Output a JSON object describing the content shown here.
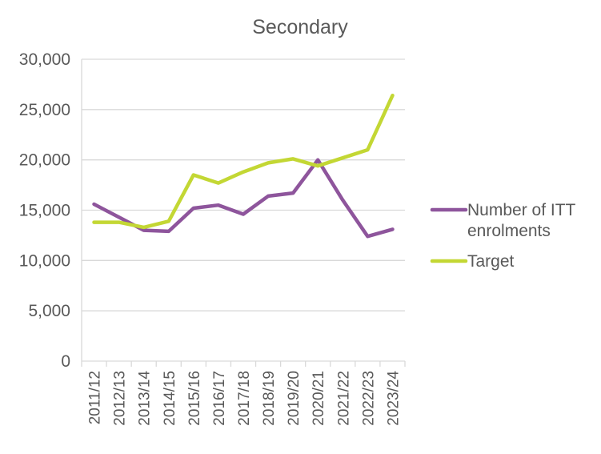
{
  "chart_data": {
    "type": "line",
    "title": "Secondary",
    "xlabel": "",
    "ylabel": "",
    "categories": [
      "2011/12",
      "2012/13",
      "2013/14",
      "2014/15",
      "2015/16",
      "2016/17",
      "2017/18",
      "2018/19",
      "2019/20",
      "2020/21",
      "2021/22",
      "2022/23",
      "2023/24"
    ],
    "ylim": [
      0,
      30000
    ],
    "yticks": [
      "0",
      "5,000",
      "10,000",
      "15,000",
      "20,000",
      "25,000",
      "30,000"
    ],
    "grid": true,
    "legend_position": "right",
    "series": [
      {
        "name": "Number of ITT enrolments",
        "name_lines": [
          "Number of ITT",
          "enrolments"
        ],
        "color": "#8E559C",
        "values": [
          15600,
          14300,
          13000,
          12900,
          15200,
          15500,
          14600,
          16400,
          16700,
          20000,
          16000,
          12400,
          13100
        ]
      },
      {
        "name": "Target",
        "name_lines": [
          "Target"
        ],
        "color": "#C3D734",
        "values": [
          13800,
          13800,
          13300,
          13900,
          18500,
          17700,
          18800,
          19700,
          20100,
          19400,
          20200,
          21000,
          26400
        ]
      }
    ]
  }
}
